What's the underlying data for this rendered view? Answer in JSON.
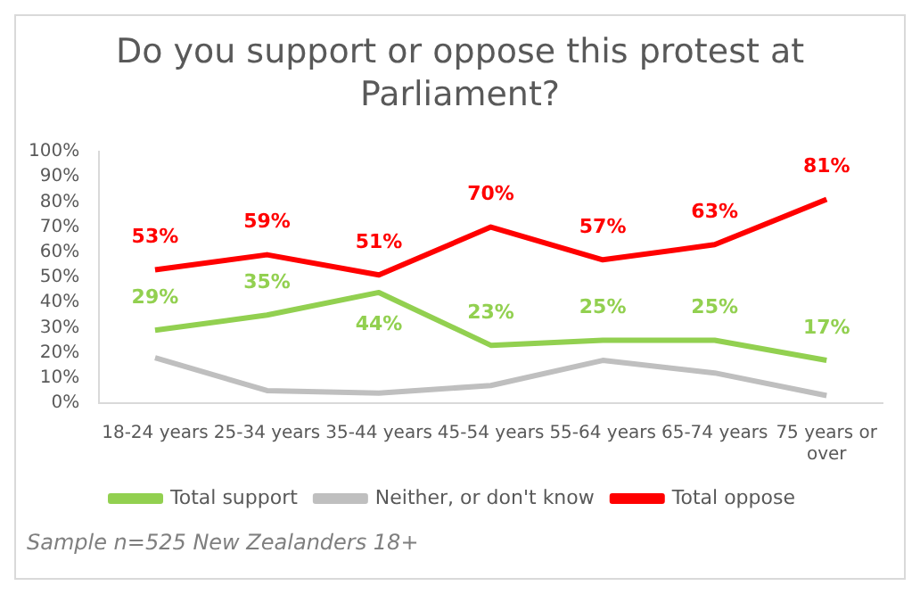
{
  "chart_data": {
    "type": "line",
    "title": "Do you support or oppose this protest at Parliament?",
    "categories": [
      "18-24 years",
      "25-34 years",
      "35-44 years",
      "45-54 years",
      "55-64 years",
      "65-74 years",
      "75 years or over"
    ],
    "series": [
      {
        "name": "Total support",
        "color": "#92d050",
        "values": [
          29,
          35,
          44,
          23,
          25,
          25,
          17
        ],
        "value_labels": [
          "29%",
          "35%",
          "44%",
          "23%",
          "25%",
          "25%",
          "17%"
        ]
      },
      {
        "name": "Neither, or don't know",
        "color": "#bfbfbf",
        "values": [
          18,
          5,
          4,
          7,
          17,
          12,
          3
        ]
      },
      {
        "name": "Total oppose",
        "color": "#ff0000",
        "values": [
          53,
          59,
          51,
          70,
          57,
          63,
          81
        ],
        "value_labels": [
          "53%",
          "59%",
          "51%",
          "70%",
          "57%",
          "63%",
          "81%"
        ]
      }
    ],
    "ylim": [
      0,
      100
    ],
    "yticks": [
      {
        "value": 0,
        "label": "0%"
      },
      {
        "value": 10,
        "label": "10%"
      },
      {
        "value": 20,
        "label": "20%"
      },
      {
        "value": 30,
        "label": "30%"
      },
      {
        "value": 40,
        "label": "40%"
      },
      {
        "value": 50,
        "label": "50%"
      },
      {
        "value": 60,
        "label": "60%"
      },
      {
        "value": 70,
        "label": "70%"
      },
      {
        "value": 80,
        "label": "80%"
      },
      {
        "value": 90,
        "label": "90%"
      },
      {
        "value": 100,
        "label": "100%"
      }
    ],
    "grid": false,
    "legend": "bottom",
    "marker": "none",
    "line_style": "solid",
    "annotations": [
      "Sample n=525 New Zealanders 18+"
    ]
  }
}
